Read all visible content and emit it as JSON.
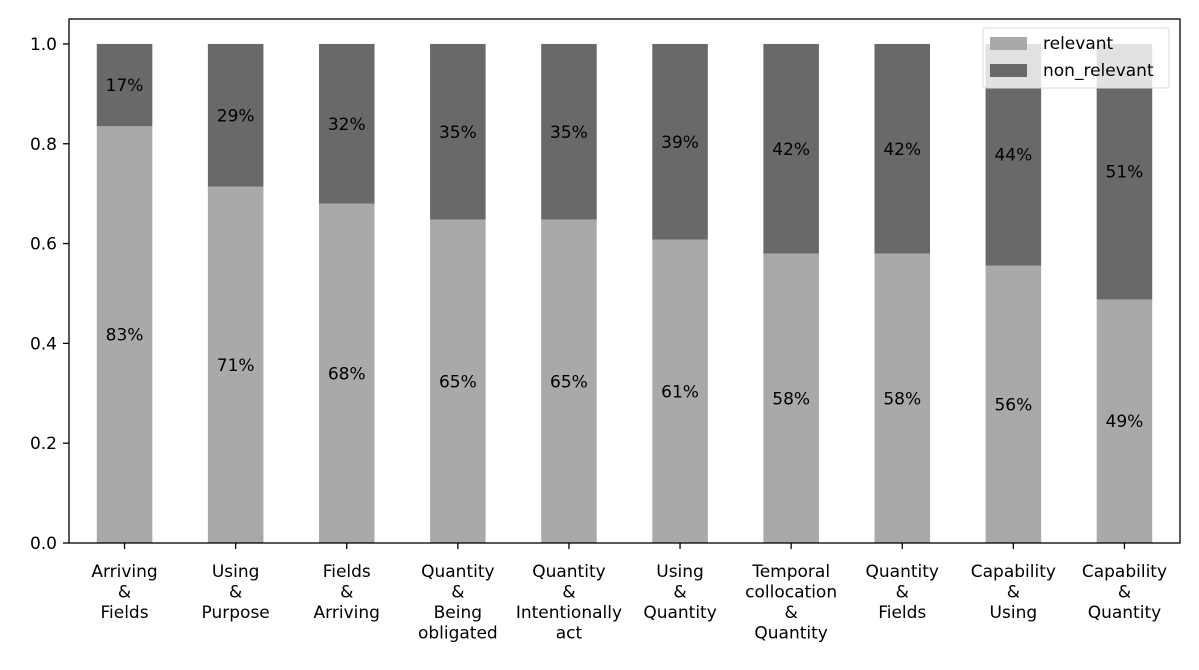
{
  "chart_data": {
    "type": "bar",
    "stacked": true,
    "title": "",
    "xlabel": "",
    "ylabel": "",
    "ylim": [
      0,
      1.05
    ],
    "yticks": [
      "0.0",
      "0.2",
      "0.4",
      "0.6",
      "0.8",
      "1.0"
    ],
    "grid": false,
    "legend_position": "top-right",
    "categories": [
      [
        "Arriving",
        "&",
        "Fields"
      ],
      [
        "Using",
        "&",
        "Purpose"
      ],
      [
        "Fields",
        "&",
        "Arriving"
      ],
      [
        "Quantity",
        "&",
        "Being",
        "obligated"
      ],
      [
        "Quantity",
        "&",
        "Intentionally",
        "act"
      ],
      [
        "Using",
        "&",
        "Quantity"
      ],
      [
        "Temporal",
        "collocation",
        "&",
        "Quantity"
      ],
      [
        "Quantity",
        "&",
        "Fields"
      ],
      [
        "Capability",
        "&",
        "Using"
      ],
      [
        "Capability",
        "&",
        "Quantity"
      ]
    ],
    "series": [
      {
        "name": "relevant",
        "color": "#a9a9a9",
        "values": [
          0.835,
          0.714,
          0.68,
          0.648,
          0.648,
          0.608,
          0.58,
          0.58,
          0.556,
          0.488
        ],
        "labels": [
          "83%",
          "71%",
          "68%",
          "65%",
          "65%",
          "61%",
          "58%",
          "58%",
          "56%",
          "49%"
        ]
      },
      {
        "name": "non_relevant",
        "color": "#696969",
        "values": [
          0.165,
          0.286,
          0.32,
          0.352,
          0.352,
          0.392,
          0.42,
          0.42,
          0.444,
          0.512
        ],
        "labels": [
          "17%",
          "29%",
          "32%",
          "35%",
          "35%",
          "39%",
          "42%",
          "42%",
          "44%",
          "51%"
        ]
      }
    ]
  }
}
